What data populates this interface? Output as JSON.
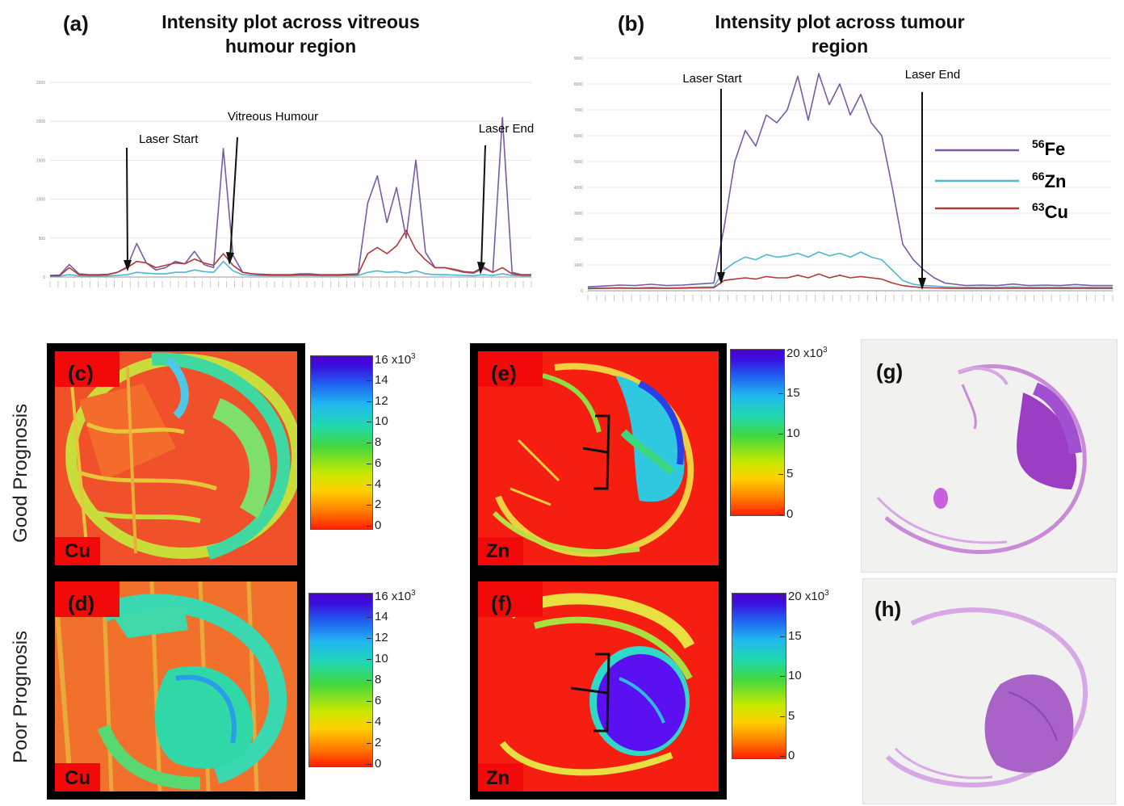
{
  "panels": {
    "a": {
      "letter": "(a)",
      "title_line1": "Intensity plot across vitreous",
      "title_line2": "humour region"
    },
    "b": {
      "letter": "(b)",
      "title_line1": "Intensity plot across tumour",
      "title_line2": "region"
    },
    "c": {
      "letter": "(c)",
      "element": "Cu"
    },
    "d": {
      "letter": "(d)",
      "element": "Cu"
    },
    "e": {
      "letter": "(e)",
      "element": "Zn"
    },
    "f": {
      "letter": "(f)",
      "element": "Zn"
    },
    "g": {
      "letter": "(g)"
    },
    "h": {
      "letter": "(h)"
    }
  },
  "row_labels": {
    "good": "Good Prognosis",
    "poor": "Poor Prognosis"
  },
  "colors": {
    "fe": "#7b5aa6",
    "zn": "#4fb8d0",
    "cu": "#b03a3a",
    "map_red": "#f20a0a",
    "he_purple": "#9b3fc4"
  },
  "chart_data": [
    {
      "type": "line",
      "title": "Intensity plot across vitreous humour region",
      "annotations": [
        "Laser Start",
        "Vitreous Humour",
        "Laser End"
      ],
      "ylim": [
        0,
        2500
      ],
      "ytick_labels": [
        "0",
        "500",
        "1000",
        "1500",
        "2000",
        "2500"
      ],
      "x": [
        0,
        2,
        4,
        6,
        8,
        10,
        12,
        14,
        16,
        18,
        20,
        22,
        24,
        26,
        28,
        30,
        32,
        34,
        36,
        38,
        40,
        42,
        44,
        46,
        48,
        50,
        52,
        54,
        56,
        58,
        60,
        62,
        64,
        66,
        68,
        70,
        72,
        74,
        76,
        78,
        80,
        82,
        84,
        86,
        88,
        90,
        92,
        94,
        96,
        98,
        100
      ],
      "series": [
        {
          "key": "fe",
          "values": [
            20,
            25,
            160,
            40,
            30,
            30,
            35,
            60,
            130,
            430,
            180,
            90,
            120,
            200,
            170,
            330,
            160,
            120,
            1650,
            280,
            60,
            40,
            35,
            30,
            30,
            30,
            40,
            40,
            30,
            30,
            30,
            35,
            40,
            950,
            1300,
            700,
            1150,
            500,
            1500,
            320,
            120,
            120,
            90,
            60,
            50,
            110,
            60,
            2050,
            60,
            30,
            30
          ]
        },
        {
          "key": "zn",
          "values": [
            10,
            12,
            30,
            15,
            14,
            14,
            15,
            20,
            30,
            60,
            50,
            40,
            40,
            60,
            60,
            90,
            70,
            60,
            200,
            80,
            30,
            20,
            18,
            16,
            16,
            16,
            18,
            18,
            16,
            16,
            16,
            18,
            20,
            60,
            80,
            60,
            70,
            50,
            80,
            40,
            30,
            30,
            25,
            20,
            18,
            30,
            20,
            40,
            20,
            15,
            15
          ]
        },
        {
          "key": "cu",
          "values": [
            15,
            18,
            120,
            30,
            25,
            25,
            30,
            60,
            120,
            200,
            180,
            120,
            150,
            180,
            170,
            230,
            180,
            150,
            300,
            150,
            60,
            40,
            30,
            25,
            25,
            25,
            30,
            30,
            25,
            25,
            25,
            30,
            35,
            300,
            380,
            300,
            400,
            600,
            350,
            220,
            120,
            120,
            100,
            70,
            60,
            130,
            60,
            120,
            40,
            25,
            25
          ]
        }
      ]
    },
    {
      "type": "line",
      "title": "Intensity plot across tumour region",
      "annotations": [
        "Laser Start",
        "Laser End"
      ],
      "ylim": [
        0,
        9000
      ],
      "ytick_labels": [
        "0",
        "1000",
        "2000",
        "3000",
        "4000",
        "5000",
        "6000",
        "7000",
        "8000",
        "9000"
      ],
      "x": [
        0,
        3,
        6,
        9,
        12,
        15,
        18,
        21,
        24,
        26,
        28,
        30,
        32,
        34,
        36,
        38,
        40,
        42,
        44,
        46,
        48,
        50,
        52,
        54,
        56,
        58,
        60,
        62,
        64,
        66,
        68,
        70,
        72,
        75,
        78,
        81,
        84,
        87,
        90,
        93,
        96,
        100
      ],
      "series": [
        {
          "key": "fe",
          "values": [
            150,
            180,
            220,
            200,
            250,
            200,
            220,
            260,
            300,
            2500,
            5000,
            6200,
            5600,
            6800,
            6500,
            7000,
            8300,
            6600,
            8400,
            7200,
            8000,
            6800,
            7600,
            6500,
            6000,
            4000,
            1800,
            1200,
            800,
            500,
            300,
            250,
            200,
            220,
            200,
            260,
            200,
            220,
            200,
            240,
            200,
            200
          ]
        },
        {
          "key": "zn",
          "values": [
            100,
            110,
            120,
            110,
            130,
            110,
            120,
            140,
            150,
            800,
            1100,
            1300,
            1200,
            1400,
            1300,
            1350,
            1450,
            1300,
            1500,
            1350,
            1450,
            1300,
            1500,
            1300,
            1200,
            800,
            400,
            250,
            200,
            180,
            150,
            140,
            130,
            140,
            130,
            150,
            130,
            140,
            130,
            140,
            130,
            130
          ]
        },
        {
          "key": "cu",
          "values": [
            80,
            90,
            100,
            90,
            100,
            90,
            100,
            110,
            120,
            400,
            450,
            500,
            450,
            550,
            500,
            500,
            600,
            500,
            650,
            500,
            600,
            500,
            550,
            500,
            450,
            300,
            200,
            150,
            120,
            110,
            100,
            90,
            90,
            90,
            90,
            100,
            90,
            90,
            90,
            90,
            90,
            90
          ]
        }
      ],
      "legend": [
        {
          "key": "fe",
          "mass": "56",
          "symbol": "Fe"
        },
        {
          "key": "zn",
          "mass": "66",
          "symbol": "Zn"
        },
        {
          "key": "cu",
          "mass": "63",
          "symbol": "Cu"
        }
      ]
    },
    {
      "type": "heatmap",
      "panel": "(c)",
      "colorbar": {
        "max": 16,
        "ticks": [
          "0",
          "2",
          "4",
          "6",
          "8",
          "10",
          "12",
          "14"
        ],
        "top_label": "16",
        "exponent": "x10",
        "exponent_sup": "3"
      }
    },
    {
      "type": "heatmap",
      "panel": "(d)",
      "colorbar": {
        "max": 16,
        "ticks": [
          "0",
          "2",
          "4",
          "6",
          "8",
          "10",
          "12",
          "14"
        ],
        "top_label": "16",
        "exponent": "x10",
        "exponent_sup": "3"
      }
    },
    {
      "type": "heatmap",
      "panel": "(e)",
      "colorbar": {
        "max": 20,
        "ticks": [
          "0",
          "5",
          "10",
          "15"
        ],
        "top_label": "20",
        "exponent": "x10",
        "exponent_sup": "3"
      }
    },
    {
      "type": "heatmap",
      "panel": "(f)",
      "colorbar": {
        "max": 20,
        "ticks": [
          "0",
          "5",
          "10",
          "15"
        ],
        "top_label": "20",
        "exponent": "x10",
        "exponent_sup": "3"
      }
    }
  ]
}
